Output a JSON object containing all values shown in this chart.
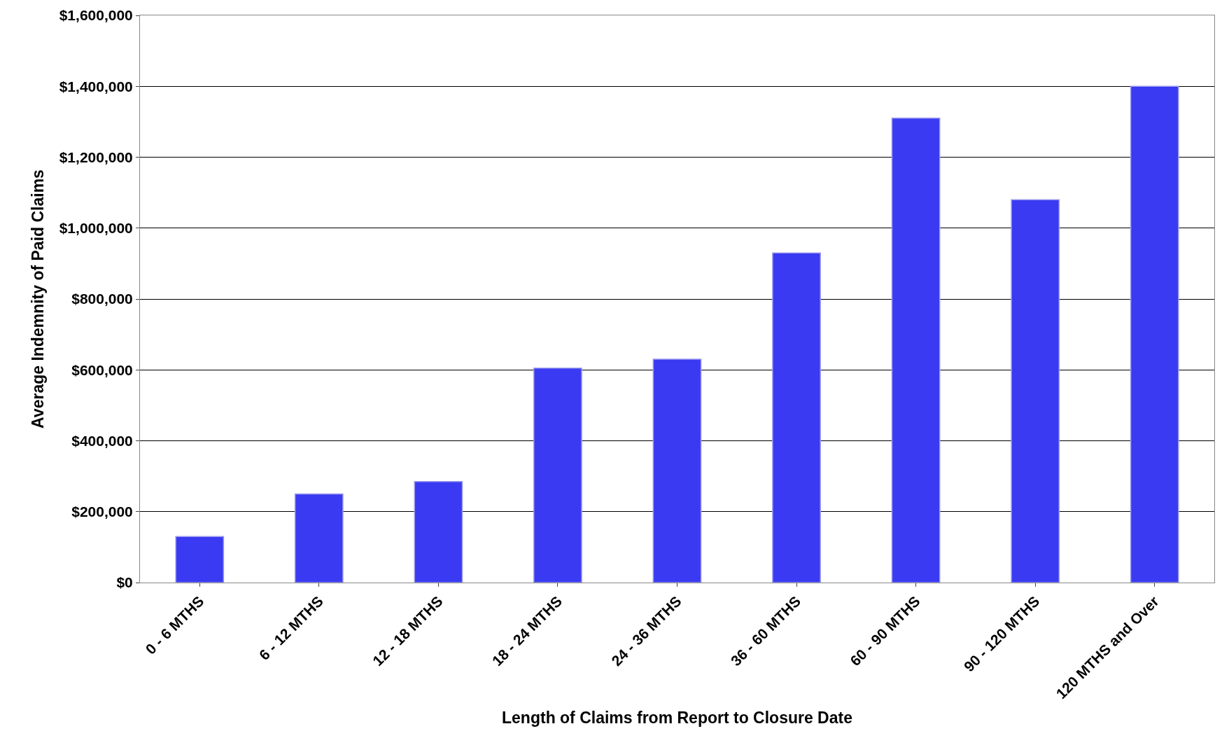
{
  "chart_data": {
    "type": "bar",
    "xlabel": "Length of Claims from Report to Closure Date",
    "ylabel": "Average Indemnity of Paid Claims",
    "categories": [
      "0 - 6 MTHS",
      "6 - 12 MTHS",
      "12 - 18 MTHS",
      "18 - 24 MTHS",
      "24 - 36 MTHS",
      "36 - 60 MTHS",
      "60 - 90 MTHS",
      "90 - 120 MTHS",
      "120 MTHS and Over"
    ],
    "values": [
      130000,
      250000,
      285000,
      605000,
      630000,
      930000,
      1310000,
      1080000,
      1400000
    ],
    "color": "#3a3af2",
    "ylim": [
      0,
      1600000
    ],
    "yticks": [
      {
        "value": 0,
        "label": "$0"
      },
      {
        "value": 200000,
        "label": "$200,000"
      },
      {
        "value": 400000,
        "label": "$400,000"
      },
      {
        "value": 600000,
        "label": "$600,000"
      },
      {
        "value": 800000,
        "label": "$800,000"
      },
      {
        "value": 1000000,
        "label": "$1,000,000"
      },
      {
        "value": 1200000,
        "label": "$1,200,000"
      },
      {
        "value": 1400000,
        "label": "$1,400,000"
      },
      {
        "value": 1600000,
        "label": "$1,600,000"
      }
    ],
    "grid": "y",
    "legend": false
  }
}
